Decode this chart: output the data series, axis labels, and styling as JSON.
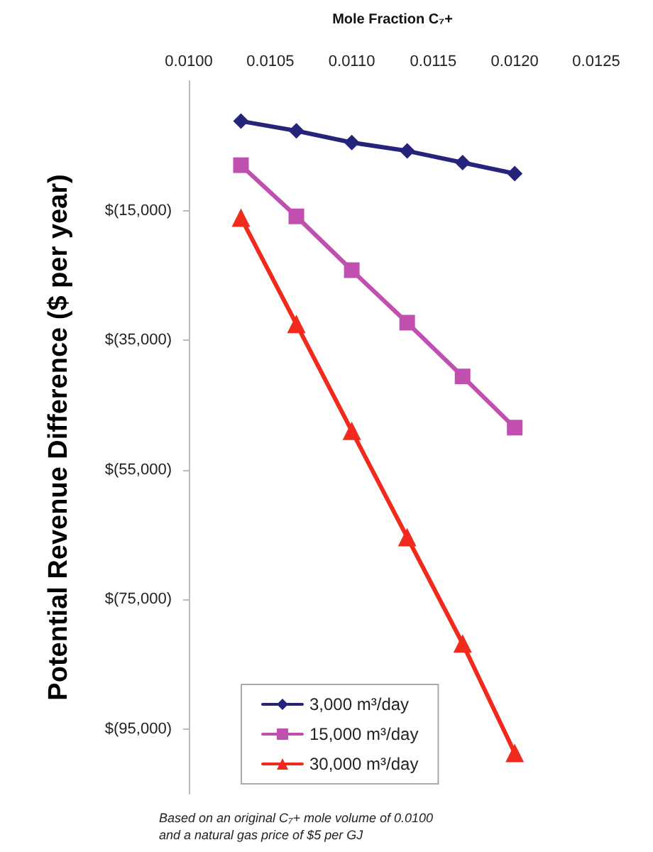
{
  "chart_data": {
    "type": "line",
    "xlabel": "Mole Fraction C₇+",
    "ylabel": "Potential Revenue Difference ($ per year)",
    "x": [
      0.01032,
      0.01066,
      0.011,
      0.01134,
      0.01168,
      0.012
    ],
    "series": [
      {
        "name": "3,000 m³/day",
        "color": "#26237a",
        "marker": "diamond",
        "values": [
          -1200,
          -2700,
          -4500,
          -5800,
          -7600,
          -9300
        ]
      },
      {
        "name": "15,000 m³/day",
        "color": "#c04fb0",
        "marker": "square",
        "values": [
          -8000,
          -15900,
          -24200,
          -32300,
          -40600,
          -48500
        ]
      },
      {
        "name": "30,000 m³/day",
        "color": "#f02a1c",
        "marker": "triangle",
        "values": [
          -16100,
          -32500,
          -49000,
          -65400,
          -81800,
          -98700
        ]
      }
    ],
    "xlim": [
      0.01,
      0.0125
    ],
    "xticks": [
      {
        "value": 0.01,
        "label": "0.0100"
      },
      {
        "value": 0.0105,
        "label": "0.0105"
      },
      {
        "value": 0.011,
        "label": "0.0110"
      },
      {
        "value": 0.0115,
        "label": "0.0115"
      },
      {
        "value": 0.012,
        "label": "0.0120"
      },
      {
        "value": 0.0125,
        "label": "0.0125"
      }
    ],
    "ylim": [
      -105000,
      5000
    ],
    "yticks": [
      {
        "value": -15000,
        "label": "$(15,000)"
      },
      {
        "value": -35000,
        "label": "$(35,000)"
      },
      {
        "value": -55000,
        "label": "$(55,000)"
      },
      {
        "value": -75000,
        "label": "$(75,000)"
      },
      {
        "value": -95000,
        "label": "$(95,000)"
      }
    ],
    "legend": "bottom",
    "annotations": [
      "Based on an original C₇+ mole volume of 0.0100\nand a natural gas price of $5 per GJ"
    ]
  }
}
